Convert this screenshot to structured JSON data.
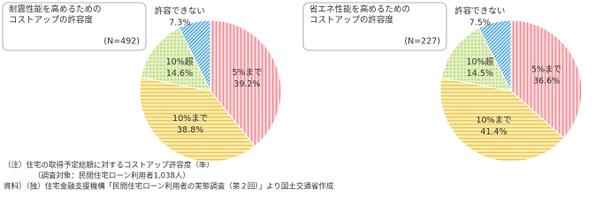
{
  "chart_data": [
    {
      "type": "pie",
      "title": [
        "耐震性能を高めるための",
        "コストアップの許容度"
      ],
      "subtitle": "(N=492)",
      "categories": [
        "5%まで",
        "10%まで",
        "10%超",
        "許容できない"
      ],
      "values": [
        39.2,
        38.8,
        14.6,
        7.3
      ],
      "value_labels": [
        "39.2%",
        "38.8%",
        "14.6%",
        "7.3%"
      ],
      "colors": [
        "#fbd3d6",
        "#fbeba8",
        "#e2f0bb",
        "#c9e6f5"
      ],
      "pattern_colors": [
        "#e88a93",
        "#e7c55a",
        "#8fc06a",
        "#3d9bd3"
      ],
      "patterns": [
        "vertical",
        "horizontal",
        "dots",
        "diagonal"
      ]
    },
    {
      "type": "pie",
      "title": [
        "省エネ性能を高めるための",
        "コストアップの許容度"
      ],
      "subtitle": "(N=227)",
      "categories": [
        "5%まで",
        "10%まで",
        "10%超",
        "許容できない"
      ],
      "values": [
        36.6,
        41.4,
        14.5,
        7.5
      ],
      "value_labels": [
        "36.6%",
        "41.4%",
        "14.5%",
        "7.5%"
      ],
      "colors": [
        "#fbd3d6",
        "#fbeba8",
        "#e2f0bb",
        "#c9e6f5"
      ],
      "pattern_colors": [
        "#e88a93",
        "#e7c55a",
        "#8fc06a",
        "#3d9bd3"
      ],
      "patterns": [
        "vertical",
        "horizontal",
        "dots",
        "diagonal"
      ]
    }
  ],
  "notes": [
    "（注）住宅の取得予定総額に対するコストアップ許容度（率）",
    "（調査対象：民間住宅ローン利用者1,038人）",
    "資料）（独）住宅金融支援機構「民間住宅ローン利用者の実態調査（第２回）」より国土交通省作成"
  ]
}
